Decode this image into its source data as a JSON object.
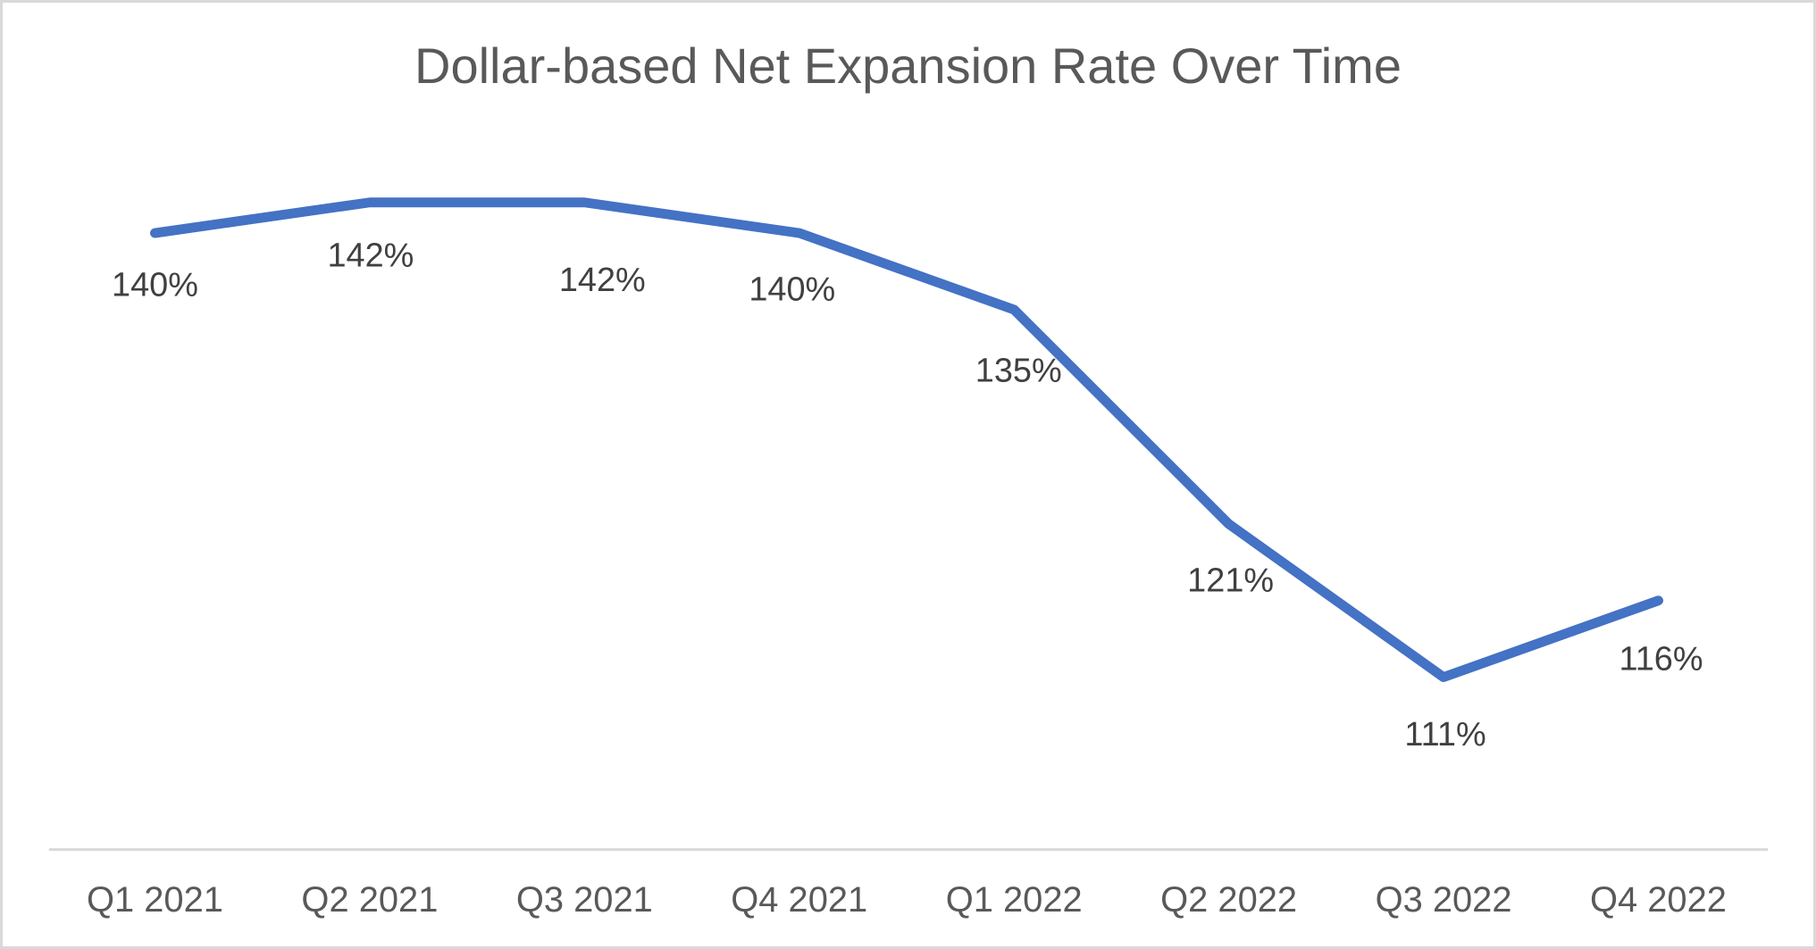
{
  "chart_data": {
    "type": "line",
    "title": "Dollar-based Net Expansion Rate Over Time",
    "categories": [
      "Q1 2021",
      "Q2 2021",
      "Q3 2021",
      "Q4 2021",
      "Q1 2022",
      "Q2 2022",
      "Q3 2022",
      "Q4 2022"
    ],
    "series": [
      {
        "values": [
          140,
          142,
          142,
          140,
          135,
          121,
          111,
          116
        ],
        "data_labels": [
          "140%",
          "142%",
          "142%",
          "140%",
          "135%",
          "121%",
          "111%",
          "116%"
        ],
        "color": "#4472C4"
      }
    ],
    "data_label_position": "below",
    "data_label_color": "#404040",
    "title_color": "#595959",
    "x_axis": {
      "line_color": "#D9D9D9",
      "label_color": "#595959",
      "labels_visible": true
    },
    "y_axis": {
      "visible": false
    },
    "ylim": [
      105,
      148
    ],
    "grid": false,
    "legend": false,
    "background": "#FFFFFF",
    "border_color": "#D9D9D9"
  }
}
